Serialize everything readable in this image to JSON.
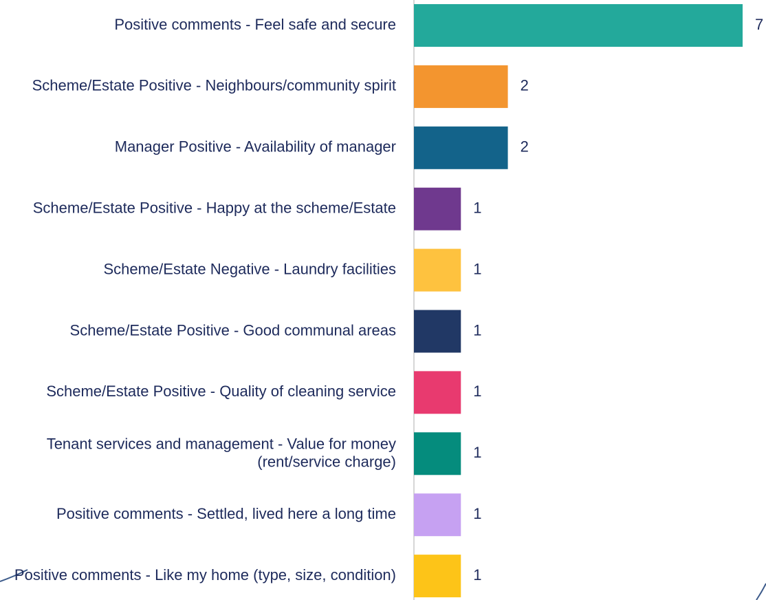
{
  "chart_data": {
    "type": "bar",
    "orientation": "horizontal",
    "categories": [
      "Positive comments - Feel safe and secure",
      "Scheme/Estate Positive - Neighbours/community spirit",
      "Manager Positive - Availability of manager",
      "Scheme/Estate Positive - Happy at the scheme/Estate",
      "Scheme/Estate Negative - Laundry facilities",
      "Scheme/Estate Positive - Good communal areas",
      "Scheme/Estate Positive - Quality of cleaning service",
      "Tenant services and management - Value for money (rent/service charge)",
      "Positive comments - Settled, lived here a long time",
      "Positive comments - Like my home (type, size, condition)"
    ],
    "values": [
      7,
      2,
      2,
      1,
      1,
      1,
      1,
      1,
      1,
      1
    ],
    "colors": [
      "#23a99b",
      "#f3952f",
      "#13638a",
      "#6f398e",
      "#fec23f",
      "#213865",
      "#e83a6f",
      "#058c7d",
      "#c6a1f2",
      "#fdc418"
    ],
    "xlim": [
      0,
      7
    ]
  }
}
